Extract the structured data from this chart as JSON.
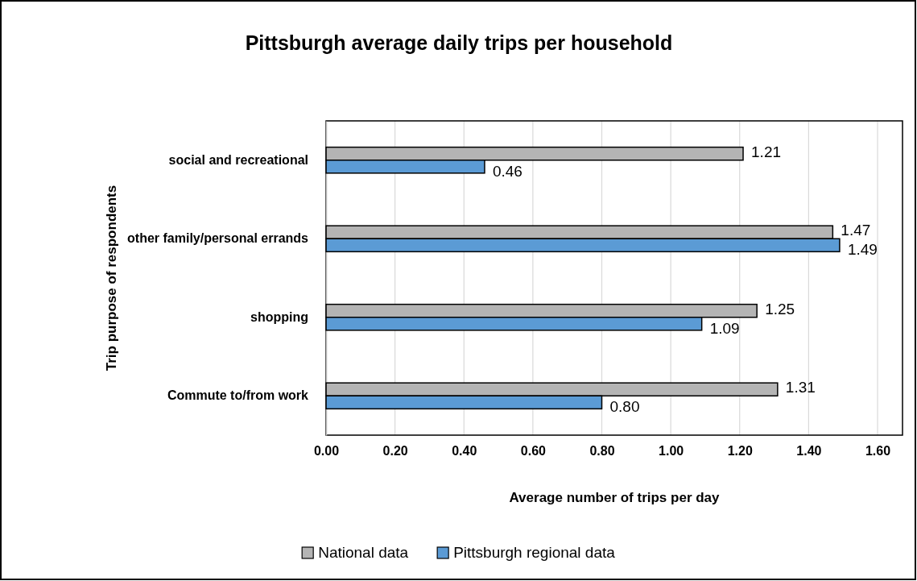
{
  "chart_data": {
    "type": "bar",
    "orientation": "horizontal",
    "title": "Pittsburgh average daily trips per household",
    "xlabel": "Average number of trips per day",
    "ylabel": "Trip purpose of respondents",
    "categories": [
      "social and recreational",
      "other family/personal errands",
      "shopping",
      "Commute to/from work"
    ],
    "series": [
      {
        "name": "National data",
        "color": "#b4b4b4",
        "values": [
          1.21,
          1.47,
          1.25,
          1.31
        ],
        "value_labels": [
          "1.21",
          "1.47",
          "1.25",
          "1.31"
        ]
      },
      {
        "name": "Pittsburgh regional data",
        "color": "#5b9bd5",
        "values": [
          0.46,
          1.49,
          1.09,
          0.8
        ],
        "value_labels": [
          "0.46",
          "1.49",
          "1.09",
          "0.80"
        ]
      }
    ],
    "xlim": [
      0,
      1.6
    ],
    "xticks": [
      {
        "value": 0,
        "label": "0.00"
      },
      {
        "value": 0.2,
        "label": "0.20"
      },
      {
        "value": 0.4,
        "label": "0.40"
      },
      {
        "value": 0.6,
        "label": "0.60"
      },
      {
        "value": 0.8,
        "label": "0.80"
      },
      {
        "value": 1,
        "label": "1.00"
      },
      {
        "value": 1.2,
        "label": "1.20"
      },
      {
        "value": 1.4,
        "label": "1.40"
      },
      {
        "value": 1.6,
        "label": "1.60"
      }
    ],
    "grid": "x",
    "legend": "bottom"
  }
}
